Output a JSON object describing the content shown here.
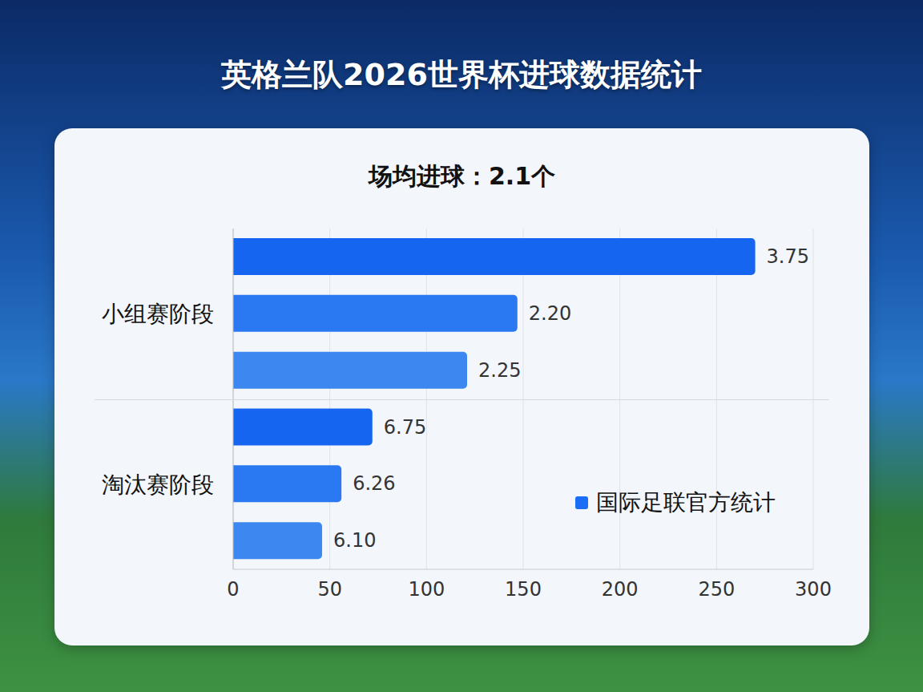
{
  "chart_data": {
    "type": "bar",
    "title": "英格兰队2026世界杯进球数据统计",
    "subtitle": "场均进球：2.1个",
    "orientation": "horizontal",
    "categories": [
      null,
      "小组赛阶段",
      null,
      null,
      "淘汰赛阶段",
      null
    ],
    "series": [
      {
        "name": "国际足联官方统计",
        "color": "#1a6ef5",
        "values": [
          270,
          147,
          121,
          72,
          56,
          46
        ]
      }
    ],
    "colors": [
      "#1565f0",
      "#2a78f2",
      "#3d88f0",
      "#1565f0",
      "#2a78f2",
      "#3d88f0"
    ],
    "annotations": [
      "3.75",
      "2.20",
      "2.25",
      "6.75",
      "6.26",
      "6.10"
    ],
    "xlim": [
      0,
      300
    ],
    "xticks": [
      0,
      50,
      100,
      150,
      200,
      250,
      300
    ],
    "grid": true,
    "legend": "lower right"
  }
}
